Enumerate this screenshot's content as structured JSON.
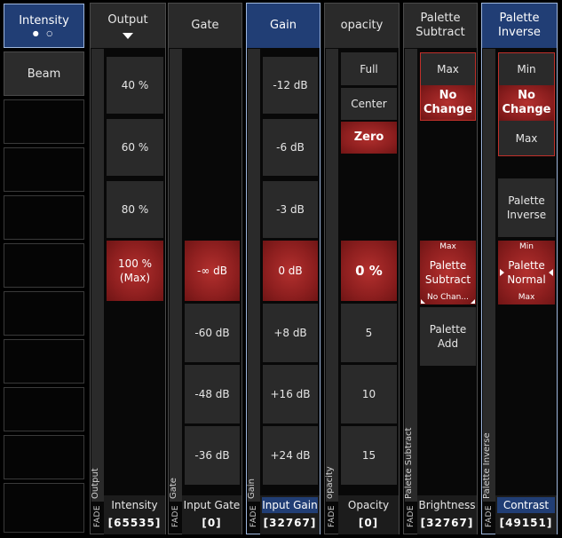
{
  "presets": {
    "intensity": "Intensity",
    "intensity_dots": "● ○",
    "beam": "Beam"
  },
  "columns": {
    "output": {
      "header": "Output",
      "vertical_label": "Output",
      "fade": "FADE",
      "footer_label": "Intensity",
      "footer_value": "[65535]",
      "cells": [
        "40 %",
        "60 %",
        "80 %",
        "100 %\n(Max)"
      ]
    },
    "gate": {
      "header": "Gate",
      "vertical_label": "Gate",
      "fade": "FADE",
      "footer_label": "Input Gate",
      "footer_value": "[0]",
      "cells": [
        "-∞ dB",
        "-60 dB",
        "-48 dB",
        "-36 dB"
      ]
    },
    "gain": {
      "header": "Gain",
      "vertical_label": "Gain",
      "fade": "FADE",
      "footer_label": "Input Gain",
      "footer_value": "[32767]",
      "cells": [
        "-12 dB",
        "-6 dB",
        "-3 dB",
        "0 dB",
        "+8 dB",
        "+16 dB",
        "+24 dB"
      ]
    },
    "opacity": {
      "header": "opacity",
      "vertical_label": "opacity",
      "fade": "FADE",
      "footer_label": "Opacity",
      "footer_value": "[0]",
      "cells": [
        "Full",
        "Center",
        "Zero",
        "0 %",
        "5",
        "10",
        "15"
      ]
    },
    "palette_subtract": {
      "header_line1": "Palette",
      "header_line2": "Subtract",
      "vertical_label": "Palette Subtract",
      "fade": "FADE",
      "footer_label": "Brightness",
      "footer_value": "[32767]",
      "max_cell": "Max",
      "nochange_line1": "No",
      "nochange_line2": "Change",
      "active_top": "Max",
      "active_line1": "Palette",
      "active_line2": "Subtract",
      "active_bottom": "No Chan...",
      "add_line1": "Palette",
      "add_line2": "Add"
    },
    "palette_inverse": {
      "header_line1": "Palette",
      "header_line2": "Inverse",
      "vertical_label": "Palette Inverse",
      "fade": "FADE",
      "footer_label": "Contrast",
      "footer_value": "[49151]",
      "min_cell": "Min",
      "nochange_line1": "No",
      "nochange_line2": "Change",
      "max_cell": "Max",
      "inverse_line1": "Palette",
      "inverse_line2": "Inverse",
      "active_top": "Min",
      "active_line1": "Palette",
      "active_line2": "Normal",
      "active_bottom": "Max"
    }
  },
  "colors": {
    "selected_blue": "#213e75",
    "active_red": "#8e1f1f",
    "cell_gray": "#2a2a2a"
  }
}
